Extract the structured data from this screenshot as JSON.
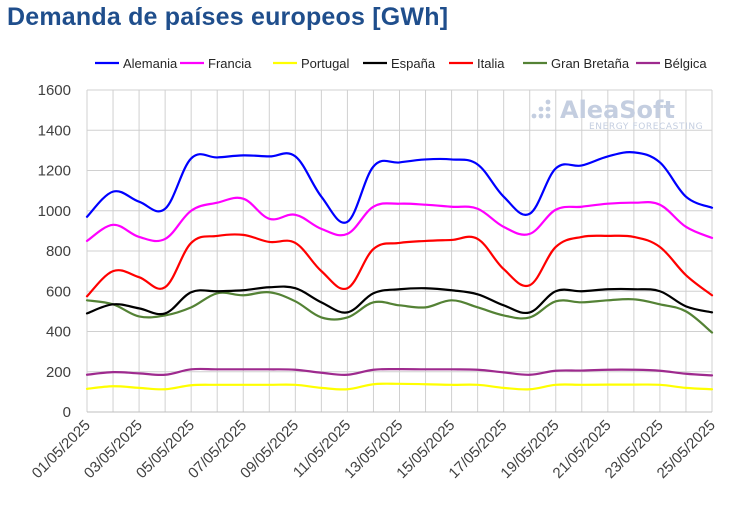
{
  "chart_data": {
    "type": "line",
    "title": "Demanda de países europeos [GWh]",
    "ylim": [
      0,
      1600
    ],
    "yticks": [
      0,
      200,
      400,
      600,
      800,
      1000,
      1200,
      1400,
      1600
    ],
    "grid": true,
    "legend_position": "top",
    "x": [
      "01/05/2025",
      "02/05/2025",
      "03/05/2025",
      "04/05/2025",
      "05/05/2025",
      "06/05/2025",
      "07/05/2025",
      "08/05/2025",
      "09/05/2025",
      "10/05/2025",
      "11/05/2025",
      "12/05/2025",
      "13/05/2025",
      "14/05/2025",
      "15/05/2025",
      "16/05/2025",
      "17/05/2025",
      "18/05/2025",
      "19/05/2025",
      "20/05/2025",
      "21/05/2025",
      "22/05/2025",
      "23/05/2025",
      "24/05/2025",
      "25/05/2025"
    ],
    "xtick_labels": [
      "01/05/2025",
      "03/05/2025",
      "05/05/2025",
      "07/05/2025",
      "09/05/2025",
      "11/05/2025",
      "13/05/2025",
      "15/05/2025",
      "17/05/2025",
      "19/05/2025",
      "21/05/2025",
      "23/05/2025",
      "25/05/2025"
    ],
    "series": [
      {
        "name": "Alemania",
        "color": "#0000ff",
        "values": [
          970,
          1095,
          1045,
          1010,
          1260,
          1265,
          1275,
          1270,
          1270,
          1070,
          945,
          1220,
          1240,
          1255,
          1255,
          1230,
          1070,
          985,
          1210,
          1225,
          1270,
          1290,
          1240,
          1070,
          1015
        ]
      },
      {
        "name": "Francia",
        "color": "#ff00ff",
        "values": [
          850,
          930,
          870,
          860,
          1000,
          1040,
          1060,
          960,
          980,
          910,
          885,
          1020,
          1035,
          1030,
          1020,
          1010,
          920,
          885,
          1005,
          1020,
          1035,
          1040,
          1030,
          920,
          865
        ]
      },
      {
        "name": "Portugal",
        "color": "#ffff00",
        "values": [
          115,
          128,
          120,
          113,
          133,
          135,
          135,
          135,
          135,
          120,
          113,
          138,
          140,
          138,
          135,
          135,
          120,
          113,
          135,
          135,
          136,
          136,
          135,
          120,
          113
        ]
      },
      {
        "name": "España",
        "color": "#000000",
        "values": [
          490,
          535,
          515,
          490,
          595,
          600,
          605,
          620,
          615,
          545,
          495,
          590,
          610,
          615,
          605,
          585,
          530,
          495,
          600,
          600,
          610,
          610,
          600,
          525,
          495
        ]
      },
      {
        "name": "Italia",
        "color": "#ff0000",
        "values": [
          575,
          700,
          670,
          620,
          840,
          875,
          880,
          845,
          840,
          700,
          615,
          810,
          840,
          850,
          855,
          860,
          710,
          630,
          820,
          870,
          875,
          870,
          820,
          680,
          580
        ]
      },
      {
        "name": "Gran Bretaña",
        "color": "#548235",
        "values": [
          555,
          535,
          475,
          480,
          520,
          590,
          580,
          595,
          550,
          470,
          470,
          545,
          530,
          520,
          555,
          520,
          480,
          470,
          550,
          545,
          555,
          560,
          535,
          500,
          395
        ]
      },
      {
        "name": "Bélgica",
        "color": "#9e2a8e",
        "values": [
          185,
          198,
          192,
          185,
          212,
          212,
          212,
          212,
          210,
          195,
          185,
          210,
          213,
          212,
          212,
          210,
          197,
          185,
          205,
          206,
          210,
          210,
          205,
          190,
          182
        ]
      }
    ]
  },
  "branding": {
    "logo_name": "AleaSoft",
    "logo_tagline": "ENERGY FORECASTING",
    "logo_color": "#c4cee0"
  }
}
